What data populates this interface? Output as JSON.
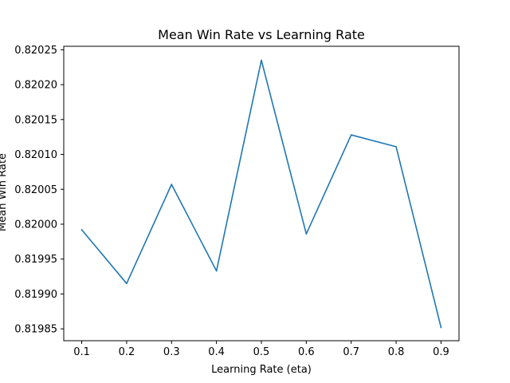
{
  "chart_data": {
    "type": "line",
    "title": "Mean Win Rate vs Learning Rate",
    "xlabel": "Learning Rate (eta)",
    "ylabel": "Mean Win Rate",
    "x": [
      0.1,
      0.2,
      0.3,
      0.4,
      0.5,
      0.6,
      0.7,
      0.8,
      0.9
    ],
    "series": [
      {
        "values": [
          0.819992,
          0.819915,
          0.820057,
          0.819933,
          0.820235,
          0.819986,
          0.820128,
          0.820111,
          0.819852
        ],
        "color": "#1f77b4"
      }
    ],
    "xticks": [
      "0.1",
      "0.2",
      "0.3",
      "0.4",
      "0.5",
      "0.6",
      "0.7",
      "0.8",
      "0.9"
    ],
    "yticks": [
      "0.81985",
      "0.81990",
      "0.81995",
      "0.82000",
      "0.82005",
      "0.82010",
      "0.82015",
      "0.82020",
      "0.82025"
    ],
    "ytick_values": [
      0.81985,
      0.8199,
      0.81995,
      0.82,
      0.82005,
      0.8201,
      0.82015,
      0.8202,
      0.82025
    ],
    "xlim": [
      0.06,
      0.94
    ],
    "ylim": [
      0.819833,
      0.820255
    ],
    "grid": false
  }
}
